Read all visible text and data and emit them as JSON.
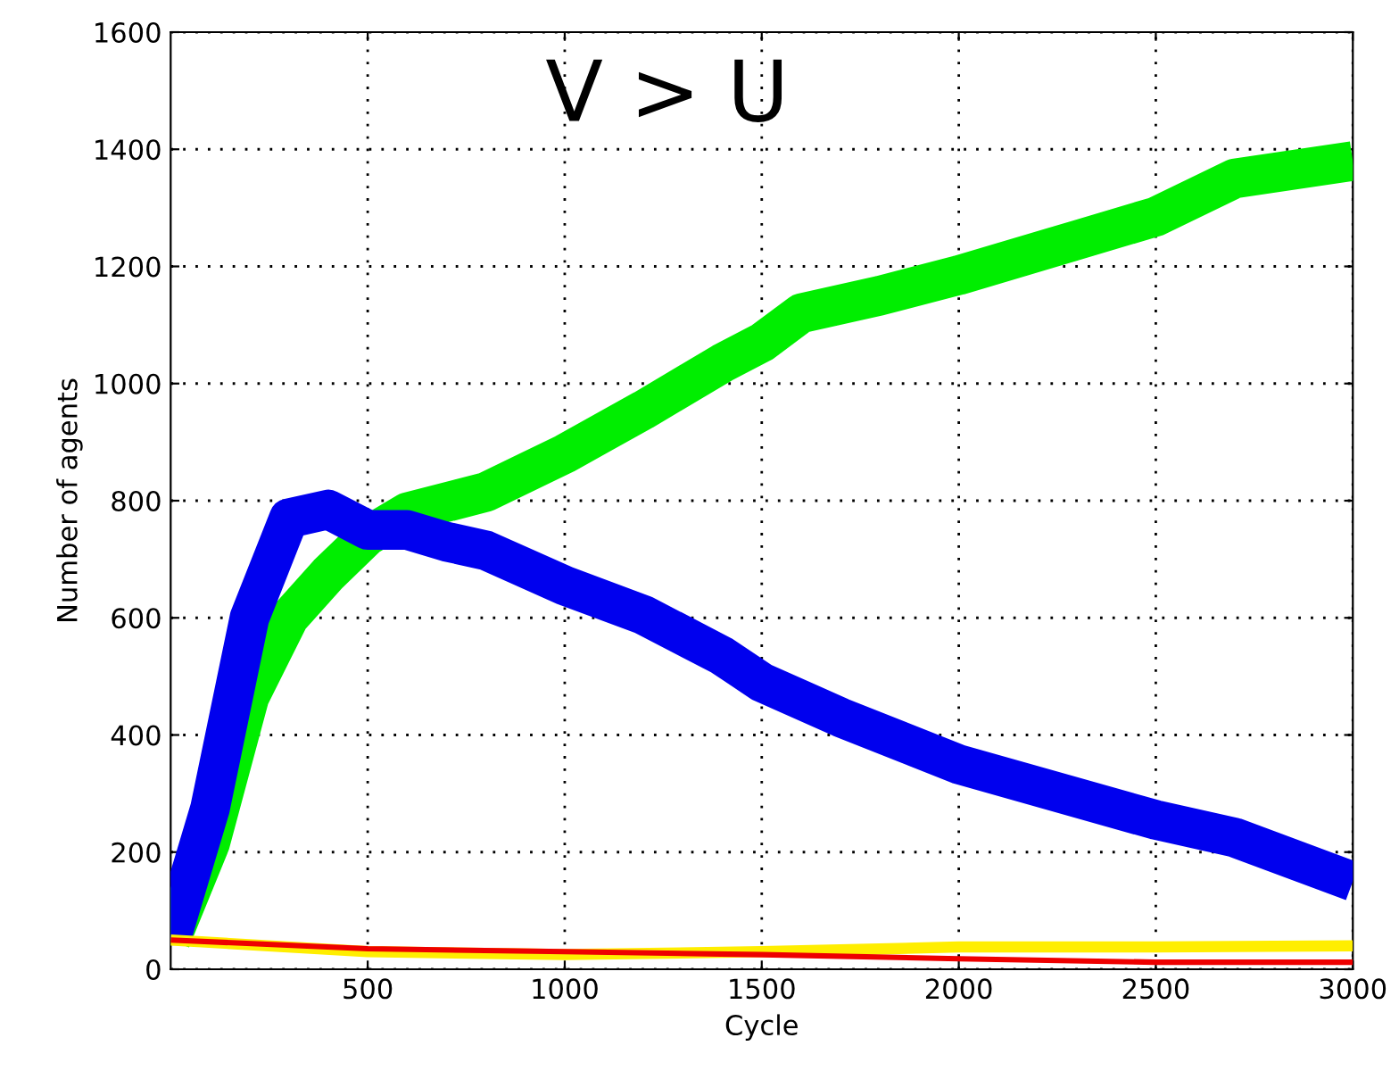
{
  "chart_data": {
    "type": "line",
    "xlabel": "Cycle",
    "ylabel": "Number of agents",
    "annotations": [
      "V > U"
    ],
    "xlim": [
      0,
      3000
    ],
    "xticks": [
      500,
      1000,
      1500,
      2000,
      2500,
      3000
    ],
    "ylim": [
      0,
      1600
    ],
    "yticks": [
      0,
      200,
      400,
      600,
      800,
      1000,
      1200,
      1400,
      1600
    ],
    "grid": true,
    "line_style": "solid",
    "series": [
      {
        "color": "#00ee00",
        "x": [
          0,
          100,
          200,
          300,
          400,
          500,
          600,
          800,
          1000,
          1200,
          1400,
          1500,
          1600,
          1800,
          2000,
          2300,
          2500,
          2700,
          3000
        ],
        "values": [
          50,
          215,
          465,
          600,
          675,
          740,
          780,
          815,
          880,
          955,
          1035,
          1070,
          1120,
          1150,
          1185,
          1245,
          1285,
          1350,
          1380
        ]
      },
      {
        "color": "#0000ee",
        "x": [
          0,
          100,
          200,
          300,
          400,
          500,
          600,
          700,
          800,
          1000,
          1200,
          1400,
          1500,
          1700,
          2000,
          2500,
          2700,
          3000
        ],
        "values": [
          50,
          275,
          600,
          770,
          785,
          750,
          750,
          730,
          715,
          655,
          605,
          535,
          490,
          430,
          350,
          255,
          225,
          150
        ]
      },
      {
        "color": "#ffee00",
        "x": [
          0,
          500,
          1000,
          1500,
          2000,
          2500,
          3000
        ],
        "values": [
          50,
          30,
          25,
          30,
          38,
          38,
          40
        ]
      },
      {
        "color": "#ee0000",
        "x": [
          0,
          500,
          1000,
          1500,
          2000,
          2500,
          3000
        ],
        "values": [
          50,
          35,
          30,
          25,
          18,
          12,
          12
        ]
      }
    ]
  }
}
